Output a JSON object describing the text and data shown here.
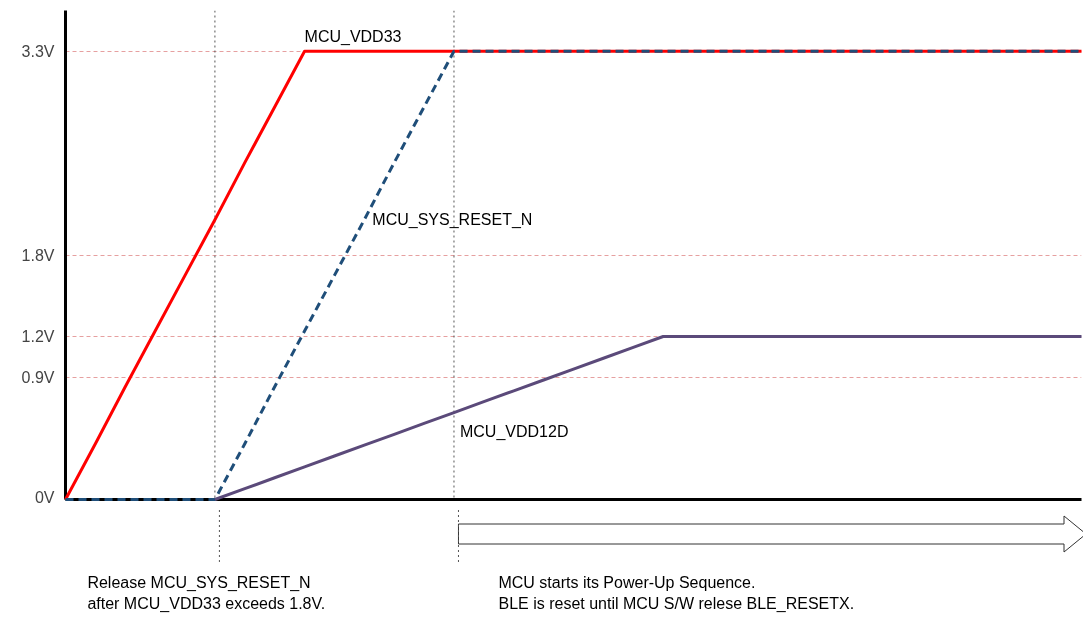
{
  "chart_data": {
    "type": "line",
    "ylim": [
      0,
      3.6
    ],
    "yticks": [
      {
        "value": 0,
        "label": "0V"
      },
      {
        "value": 0.9,
        "label": "0.9V"
      },
      {
        "value": 1.2,
        "label": "1.2V"
      },
      {
        "value": 1.8,
        "label": "1.8V"
      },
      {
        "value": 3.3,
        "label": "3.3V"
      }
    ],
    "tick_labels": "y",
    "grid": "y",
    "categories": [
      null,
      null,
      null,
      null,
      null,
      null,
      null,
      null,
      null,
      null,
      null,
      null,
      null,
      null,
      null,
      null,
      null,
      null,
      null,
      null,
      null,
      null,
      null,
      null,
      null,
      null,
      null,
      null,
      null,
      null,
      null,
      null,
      null,
      null,
      null
    ],
    "series": [
      {
        "name": "MCU_VDD33",
        "color": "#ff0000",
        "values": [
          0,
          0.41,
          0.83,
          1.24,
          1.65,
          2.06,
          2.48,
          2.89,
          3.3,
          3.3,
          3.3,
          3.3,
          3.3,
          3.3,
          3.3,
          3.3,
          3.3,
          3.3,
          3.3,
          3.3,
          3.3,
          3.3,
          3.3,
          3.3,
          3.3,
          3.3,
          3.3,
          3.3,
          3.3,
          3.3,
          3.3,
          3.3,
          3.3,
          3.3,
          3.3
        ],
        "line_style": "solid"
      },
      {
        "name": "MCU_SYS_RESET_N",
        "color": "#1f4e79",
        "values": [
          0,
          0,
          0,
          0,
          0,
          0,
          0.41,
          0.83,
          1.24,
          1.65,
          2.06,
          2.48,
          2.89,
          3.3,
          3.3,
          3.3,
          3.3,
          3.3,
          3.3,
          3.3,
          3.3,
          3.3,
          3.3,
          3.3,
          3.3,
          3.3,
          3.3,
          3.3,
          3.3,
          3.3,
          3.3,
          3.3,
          3.3,
          3.3,
          3.3
        ],
        "line_style": "dashed"
      },
      {
        "name": "MCU_VDD12D",
        "color": "#5b4a7a",
        "values": [
          null,
          null,
          null,
          null,
          null,
          0,
          0.08,
          0.16,
          0.24,
          0.32,
          0.4,
          0.48,
          0.56,
          0.64,
          0.72,
          0.8,
          0.88,
          0.96,
          1.04,
          1.12,
          1.2,
          1.2,
          1.2,
          1.2,
          1.2,
          1.2,
          1.2,
          1.2,
          1.2,
          1.2,
          1.2,
          1.2,
          1.2,
          1.2,
          1.2
        ],
        "line_style": "solid"
      }
    ],
    "annotations": [
      "Release MCU_SYS_RESET_N\nafter MCU_VDD33 exceeds 1.8V.",
      "MCU starts its Power-Up Sequence.\nBLE is reset until MCU S/W relese BLE_RESETX."
    ]
  }
}
